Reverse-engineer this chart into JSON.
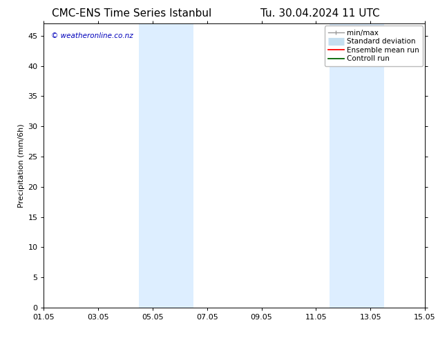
{
  "title_left": "CMC-ENS Time Series Istanbul",
  "title_right": "Tu. 30.04.2024 11 UTC",
  "ylabel": "Precipitation (mm/6h)",
  "xlabel_ticks": [
    "01.05",
    "03.05",
    "05.05",
    "07.05",
    "09.05",
    "11.05",
    "13.05",
    "15.05"
  ],
  "xtick_positions": [
    0,
    2,
    4,
    6,
    8,
    10,
    12,
    14
  ],
  "xlim": [
    0,
    14
  ],
  "ylim": [
    0,
    47
  ],
  "yticks": [
    0,
    5,
    10,
    15,
    20,
    25,
    30,
    35,
    40,
    45
  ],
  "shaded_regions": [
    {
      "xstart": 3.5,
      "xend": 4.5,
      "color": "#ddeeff"
    },
    {
      "xstart": 4.5,
      "xend": 5.5,
      "color": "#ddeeff"
    },
    {
      "xstart": 10.5,
      "xend": 11.5,
      "color": "#ddeeff"
    },
    {
      "xstart": 11.5,
      "xend": 12.5,
      "color": "#ddeeff"
    }
  ],
  "legend_items": [
    {
      "label": "min/max",
      "color": "#aaaaaa",
      "lw": 1.2,
      "style": "line_with_caps"
    },
    {
      "label": "Standard deviation",
      "color": "#c5dff0",
      "lw": 7,
      "style": "thick_line"
    },
    {
      "label": "Ensemble mean run",
      "color": "red",
      "lw": 1.5,
      "style": "line"
    },
    {
      "label": "Controll run",
      "color": "green",
      "lw": 1.5,
      "style": "line"
    }
  ],
  "watermark": "© weatheronline.co.nz",
  "watermark_color": "#0000bb",
  "background_color": "#ffffff",
  "plot_bg_color": "#ffffff",
  "title_fontsize": 11,
  "tick_fontsize": 8,
  "ylabel_fontsize": 8,
  "legend_fontsize": 7.5
}
